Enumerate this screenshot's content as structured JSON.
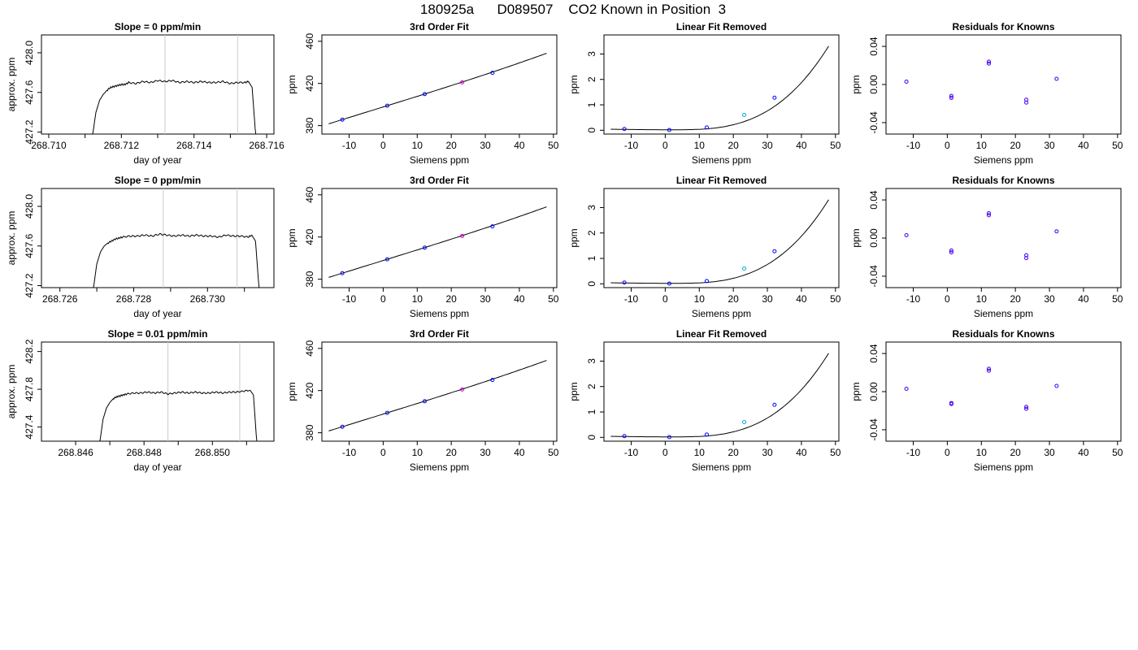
{
  "figure": {
    "title": "180925a      D089507    CO2 Known in Position  3"
  },
  "colors": {
    "trace": "#000000",
    "fit_line": "#000000",
    "window_line": "#cccccc",
    "points": "#0000ff",
    "points_alt": "#cc00cc",
    "points_cyan": "#00aacc"
  },
  "chart_data": [
    {
      "row": 1,
      "type": "line",
      "title": "Slope =  0  ppm/min",
      "xlabel": "day of year",
      "ylabel": "approx. ppm",
      "xlim": [
        268.7098,
        268.7162
      ],
      "ylim": [
        427.18,
        428.18
      ],
      "xticks": [
        "268.710",
        "268.712",
        "268.714",
        "268.716"
      ],
      "xtick_values": [
        268.71,
        268.712,
        268.714,
        268.716
      ],
      "minor_xticks": [
        268.711,
        268.713,
        268.715
      ],
      "yticks": [
        "427.2",
        "427.6",
        "428.0"
      ],
      "ytick_values": [
        427.2,
        427.6,
        428.0
      ],
      "vlines": [
        268.7132,
        268.7152
      ],
      "trace": {
        "x": [
          268.7112,
          268.7113,
          268.7114,
          268.7115,
          268.7116,
          268.7117,
          268.7118,
          268.7119,
          268.712,
          268.7121,
          268.7122,
          268.7124,
          268.7126,
          268.7128,
          268.713,
          268.7132,
          268.7134,
          268.7136,
          268.7138,
          268.714,
          268.7142,
          268.7144,
          268.7146,
          268.7148,
          268.715,
          268.7152,
          268.7154,
          268.7155,
          268.7156,
          268.7157
        ],
        "y": [
          427.15,
          427.4,
          427.52,
          427.58,
          427.62,
          427.65,
          427.66,
          427.67,
          427.68,
          427.68,
          427.7,
          427.69,
          427.71,
          427.7,
          427.72,
          427.71,
          427.72,
          427.7,
          427.71,
          427.7,
          427.71,
          427.7,
          427.7,
          427.71,
          427.69,
          427.7,
          427.7,
          427.71,
          427.65,
          427.15
        ]
      }
    },
    {
      "row": 1,
      "type": "scatter",
      "title": "3rd Order Fit",
      "xlabel": "Siemens ppm",
      "ylabel": "ppm",
      "xlim": [
        -18,
        51
      ],
      "ylim": [
        372,
        466
      ],
      "xticks": [
        "-10",
        "0",
        "10",
        "20",
        "30",
        "40",
        "50"
      ],
      "xtick_values": [
        -10,
        0,
        10,
        20,
        30,
        40,
        50
      ],
      "yticks": [
        "380",
        "420",
        "460"
      ],
      "ytick_values": [
        380,
        420,
        460
      ],
      "fit": {
        "x_start": -16,
        "x_end": 48,
        "intercept": 397.7,
        "slope": 1.0,
        "c2": 0.0003,
        "c3": 2e-05
      },
      "points": {
        "x": [
          -12,
          1.2,
          12.2,
          23.2,
          32.1
        ],
        "y": [
          385.7,
          398.9,
          409.9,
          421.0,
          430.1
        ]
      }
    },
    {
      "row": 1,
      "type": "scatter",
      "title": "Linear Fit Removed",
      "xlabel": "Siemens ppm",
      "ylabel": "ppm",
      "xlim": [
        -18,
        51
      ],
      "ylim": [
        -0.15,
        3.75
      ],
      "xticks": [
        "-10",
        "0",
        "10",
        "20",
        "30",
        "40",
        "50"
      ],
      "xtick_values": [
        -10,
        0,
        10,
        20,
        30,
        40,
        50
      ],
      "yticks": [
        "0",
        "1",
        "2",
        "3"
      ],
      "ytick_values": [
        0,
        1,
        2,
        3
      ],
      "fit": {
        "x_start": -16,
        "x_end": 48,
        "x0": 2,
        "a": 3.38e-05,
        "b": 0.0,
        "c": 0.0
      },
      "points": {
        "x": [
          -12,
          1.2,
          12.2,
          23.2,
          32.1
        ],
        "y": [
          0.05,
          0.01,
          0.11,
          0.6,
          1.28
        ]
      }
    },
    {
      "row": 1,
      "type": "scatter",
      "title": "Residuals for Knowns",
      "xlabel": "Siemens ppm",
      "ylabel": "ppm",
      "xlim": [
        -18,
        51
      ],
      "ylim": [
        -0.052,
        0.052
      ],
      "xticks": [
        "-10",
        "0",
        "10",
        "20",
        "30",
        "40",
        "50"
      ],
      "xtick_values": [
        -10,
        0,
        10,
        20,
        30,
        40,
        50
      ],
      "yticks": [
        "-0.04",
        "0.00",
        "0.04"
      ],
      "ytick_values": [
        -0.04,
        0.0,
        0.04
      ],
      "points": {
        "x": [
          -12,
          1.2,
          1.2,
          12.2,
          12.2,
          23.2,
          23.2,
          32.1
        ],
        "y": [
          0.003,
          -0.012,
          -0.014,
          0.024,
          0.022,
          -0.016,
          -0.019,
          0.006
        ]
      }
    },
    {
      "row": 2,
      "type": "line",
      "title": "Slope =  0  ppm/min",
      "xlabel": "day of year",
      "ylabel": "approx. ppm",
      "xlim": [
        268.7255,
        268.7318
      ],
      "ylim": [
        427.18,
        428.18
      ],
      "xticks": [
        "268.726",
        "268.728",
        "268.730"
      ],
      "xtick_values": [
        268.726,
        268.728,
        268.73
      ],
      "minor_xticks": [
        268.727,
        268.729,
        268.731
      ],
      "yticks": [
        "427.2",
        "427.6",
        "428.0"
      ],
      "ytick_values": [
        427.2,
        427.6,
        428.0
      ],
      "vlines": [
        268.7288,
        268.7308
      ],
      "trace": {
        "x": [
          268.7269,
          268.727,
          268.7271,
          268.7272,
          268.7273,
          268.7274,
          268.7275,
          268.7276,
          268.7277,
          268.7279,
          268.7281,
          268.7283,
          268.7285,
          268.7287,
          268.7289,
          268.7291,
          268.7293,
          268.7295,
          268.7297,
          268.7299,
          268.7301,
          268.7303,
          268.7305,
          268.7307,
          268.7309,
          268.7311,
          268.7312,
          268.7313,
          268.7314
        ],
        "y": [
          427.15,
          427.42,
          427.54,
          427.6,
          427.63,
          427.65,
          427.67,
          427.68,
          427.69,
          427.7,
          427.7,
          427.71,
          427.7,
          427.72,
          427.71,
          427.7,
          427.71,
          427.7,
          427.71,
          427.7,
          427.7,
          427.69,
          427.71,
          427.7,
          427.7,
          427.69,
          427.71,
          427.65,
          427.15
        ]
      }
    },
    {
      "row": 2,
      "type": "scatter",
      "title": "3rd Order Fit",
      "xlabel": "Siemens ppm",
      "ylabel": "ppm",
      "xlim": [
        -18,
        51
      ],
      "ylim": [
        372,
        466
      ],
      "xticks": [
        "-10",
        "0",
        "10",
        "20",
        "30",
        "40",
        "50"
      ],
      "xtick_values": [
        -10,
        0,
        10,
        20,
        30,
        40,
        50
      ],
      "yticks": [
        "380",
        "420",
        "460"
      ],
      "ytick_values": [
        380,
        420,
        460
      ],
      "fit": {
        "x_start": -16,
        "x_end": 48,
        "intercept": 397.7,
        "slope": 1.0,
        "c2": 0.0003,
        "c3": 2e-05
      },
      "points": {
        "x": [
          -12,
          1.2,
          12.2,
          23.2,
          32.1
        ],
        "y": [
          385.7,
          398.9,
          409.9,
          421.0,
          430.1
        ]
      }
    },
    {
      "row": 2,
      "type": "scatter",
      "title": "Linear Fit Removed",
      "xlabel": "Siemens ppm",
      "ylabel": "ppm",
      "xlim": [
        -18,
        51
      ],
      "ylim": [
        -0.15,
        3.75
      ],
      "xticks": [
        "-10",
        "0",
        "10",
        "20",
        "30",
        "40",
        "50"
      ],
      "xtick_values": [
        -10,
        0,
        10,
        20,
        30,
        40,
        50
      ],
      "yticks": [
        "0",
        "1",
        "2",
        "3"
      ],
      "ytick_values": [
        0,
        1,
        2,
        3
      ],
      "fit": {
        "x_start": -16,
        "x_end": 48,
        "x0": 2,
        "a": 3.38e-05,
        "b": 0.0,
        "c": 0.0
      },
      "points": {
        "x": [
          -12,
          1.2,
          12.2,
          23.2,
          32.1
        ],
        "y": [
          0.05,
          0.01,
          0.11,
          0.6,
          1.28
        ]
      }
    },
    {
      "row": 2,
      "type": "scatter",
      "title": "Residuals for Knowns",
      "xlabel": "Siemens ppm",
      "ylabel": "ppm",
      "xlim": [
        -18,
        51
      ],
      "ylim": [
        -0.052,
        0.052
      ],
      "xticks": [
        "-10",
        "0",
        "10",
        "20",
        "30",
        "40",
        "50"
      ],
      "xtick_values": [
        -10,
        0,
        10,
        20,
        30,
        40,
        50
      ],
      "yticks": [
        "-0.04",
        "0.00",
        "0.04"
      ],
      "ytick_values": [
        -0.04,
        0.0,
        0.04
      ],
      "points": {
        "x": [
          -12,
          1.2,
          1.2,
          12.2,
          12.2,
          23.2,
          23.2,
          32.1
        ],
        "y": [
          0.003,
          -0.013,
          -0.015,
          0.026,
          0.024,
          -0.018,
          -0.021,
          0.007
        ]
      }
    },
    {
      "row": 3,
      "type": "line",
      "title": "Slope =  0.01  ppm/min",
      "xlabel": "day of year",
      "ylabel": "approx. ppm",
      "xlim": [
        268.845,
        268.8518
      ],
      "ylim": [
        427.25,
        428.3
      ],
      "xticks": [
        "268.846",
        "268.848",
        "268.850"
      ],
      "xtick_values": [
        268.846,
        268.848,
        268.85
      ],
      "minor_xticks": [
        268.847,
        268.849,
        268.851
      ],
      "yticks": [
        "427.4",
        "427.8",
        "428.2"
      ],
      "ytick_values": [
        427.4,
        427.8,
        428.2
      ],
      "vlines": [
        268.8487,
        268.8508
      ],
      "trace": {
        "x": [
          268.8467,
          268.8468,
          268.8469,
          268.847,
          268.8471,
          268.8472,
          268.8473,
          268.8474,
          268.8475,
          268.8477,
          268.8479,
          268.8481,
          268.8483,
          268.8485,
          268.8487,
          268.8489,
          268.8491,
          268.8493,
          268.8495,
          268.8497,
          268.8499,
          268.8501,
          268.8503,
          268.8505,
          268.8507,
          268.8509,
          268.8511,
          268.8512,
          268.8513
        ],
        "y": [
          427.22,
          427.48,
          427.6,
          427.66,
          427.7,
          427.72,
          427.73,
          427.74,
          427.75,
          427.76,
          427.76,
          427.77,
          427.76,
          427.77,
          427.75,
          427.76,
          427.77,
          427.76,
          427.77,
          427.76,
          427.76,
          427.77,
          427.76,
          427.77,
          427.77,
          427.78,
          427.79,
          427.74,
          427.22
        ]
      }
    },
    {
      "row": 3,
      "type": "scatter",
      "title": "3rd Order Fit",
      "xlabel": "Siemens ppm",
      "ylabel": "ppm",
      "xlim": [
        -18,
        51
      ],
      "ylim": [
        372,
        466
      ],
      "xticks": [
        "-10",
        "0",
        "10",
        "20",
        "30",
        "40",
        "50"
      ],
      "xtick_values": [
        -10,
        0,
        10,
        20,
        30,
        40,
        50
      ],
      "yticks": [
        "380",
        "420",
        "460"
      ],
      "ytick_values": [
        380,
        420,
        460
      ],
      "fit": {
        "x_start": -16,
        "x_end": 48,
        "intercept": 397.7,
        "slope": 1.0,
        "c2": 0.0003,
        "c3": 2e-05
      },
      "points": {
        "x": [
          -12,
          1.2,
          12.2,
          23.2,
          32.1
        ],
        "y": [
          385.7,
          398.9,
          409.9,
          421.0,
          430.1
        ]
      }
    },
    {
      "row": 3,
      "type": "scatter",
      "title": "Linear Fit Removed",
      "xlabel": "Siemens ppm",
      "ylabel": "ppm",
      "xlim": [
        -18,
        51
      ],
      "ylim": [
        -0.15,
        3.75
      ],
      "xticks": [
        "-10",
        "0",
        "10",
        "20",
        "30",
        "40",
        "50"
      ],
      "xtick_values": [
        -10,
        0,
        10,
        20,
        30,
        40,
        50
      ],
      "yticks": [
        "0",
        "1",
        "2",
        "3"
      ],
      "ytick_values": [
        0,
        1,
        2,
        3
      ],
      "fit": {
        "x_start": -16,
        "x_end": 48,
        "x0": 2,
        "a": 3.38e-05,
        "b": 0.0,
        "c": 0.0
      },
      "points": {
        "x": [
          -12,
          1.2,
          12.2,
          23.2,
          32.1
        ],
        "y": [
          0.05,
          0.01,
          0.11,
          0.6,
          1.28
        ]
      }
    },
    {
      "row": 3,
      "type": "scatter",
      "title": "Residuals for Knowns",
      "xlabel": "Siemens ppm",
      "ylabel": "ppm",
      "xlim": [
        -18,
        51
      ],
      "ylim": [
        -0.052,
        0.052
      ],
      "xticks": [
        "-10",
        "0",
        "10",
        "20",
        "30",
        "40",
        "50"
      ],
      "xtick_values": [
        -10,
        0,
        10,
        20,
        30,
        40,
        50
      ],
      "yticks": [
        "-0.04",
        "0.00",
        "0.04"
      ],
      "ytick_values": [
        -0.04,
        0.0,
        0.04
      ],
      "points": {
        "x": [
          -12,
          1.2,
          1.2,
          12.2,
          12.2,
          23.2,
          23.2,
          32.1
        ],
        "y": [
          0.003,
          -0.012,
          -0.013,
          0.024,
          0.022,
          -0.016,
          -0.018,
          0.006
        ]
      }
    }
  ]
}
